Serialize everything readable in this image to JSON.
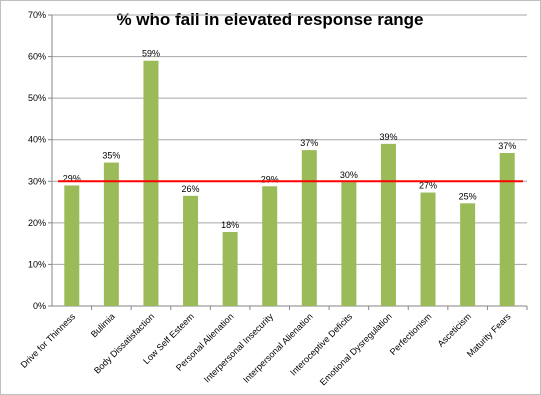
{
  "chart_data": {
    "type": "bar",
    "title": "% who fall in elevated response range",
    "xlabel": "",
    "ylabel": "",
    "categories": [
      "Drive for Thinness",
      "Bulimia",
      "Body Dissatisfaction",
      "Low Self Esteem",
      "Personal Alienation",
      "Interpersonal Insecurity",
      "Interpersonal Alienation",
      "Interoceptive Deficits",
      "Emotional Dysregulation",
      "Perfectionism",
      "Asceticism",
      "Maturity Fears"
    ],
    "values": [
      29,
      35,
      59,
      26,
      18,
      29,
      37,
      30,
      39,
      27,
      25,
      37
    ],
    "data_labels": [
      "29%",
      "35%",
      "59%",
      "26%",
      "18%",
      "29%",
      "37%",
      "30%",
      "39%",
      "27%",
      "25%",
      "37%"
    ],
    "bar_values": [
      29,
      34.5,
      59,
      26.5,
      17.8,
      28.8,
      37.5,
      29.8,
      39,
      27.3,
      24.7,
      36.8
    ],
    "ylim": [
      0,
      70
    ],
    "yticks": [
      0,
      10,
      20,
      30,
      40,
      50,
      60,
      70
    ],
    "ytick_labels": [
      "0%",
      "10%",
      "20%",
      "30%",
      "40%",
      "50%",
      "60%",
      "70%"
    ],
    "reference_line": 30,
    "grid": true,
    "legend": "none",
    "colors": {
      "bar": "#9bbb59",
      "reference_line": "#ff0000",
      "grid": "#a6a6a6",
      "axis": "#868686"
    }
  }
}
